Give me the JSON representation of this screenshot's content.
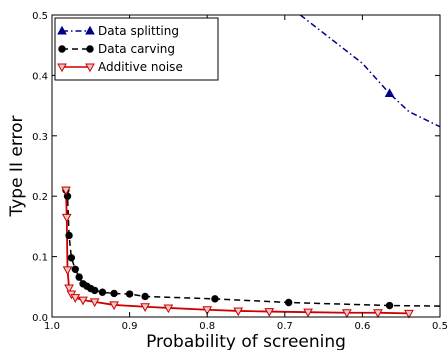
{
  "chart_data": {
    "type": "line",
    "title": "",
    "xlabel": "Probability of screening",
    "ylabel": "Type II error",
    "xlim": [
      1.0,
      0.5
    ],
    "ylim": [
      0.0,
      0.5
    ],
    "x_reversed": true,
    "xticks": [
      "1.0",
      "0.9",
      "0.8",
      "0.7",
      "0.6",
      "0.5"
    ],
    "yticks": [
      "0.0",
      "0.1",
      "0.2",
      "0.3",
      "0.4",
      "0.5"
    ],
    "grid": false,
    "legend_position": "top-left",
    "series": [
      {
        "name": "Data splitting",
        "color": "#00008B",
        "line_style": "dash-dot",
        "marker": "triangle-up",
        "x": [
          0.68,
          0.6,
          0.565,
          0.54,
          0.5
        ],
        "y": [
          0.5,
          0.42,
          0.37,
          0.34,
          0.315
        ],
        "marker_x": [
          0.565
        ],
        "marker_y": [
          0.37
        ]
      },
      {
        "name": "Data carving",
        "color": "#000000",
        "line_style": "dashed",
        "marker": "circle",
        "x": [
          0.982,
          0.98,
          0.978,
          0.975,
          0.97,
          0.965,
          0.96,
          0.955,
          0.95,
          0.945,
          0.935,
          0.92,
          0.9,
          0.88,
          0.79,
          0.695,
          0.565,
          0.5
        ],
        "y": [
          0.21,
          0.2,
          0.135,
          0.098,
          0.079,
          0.066,
          0.055,
          0.051,
          0.047,
          0.044,
          0.041,
          0.039,
          0.038,
          0.034,
          0.03,
          0.024,
          0.019,
          0.018
        ],
        "marker_x": [
          0.982,
          0.98,
          0.978,
          0.975,
          0.97,
          0.965,
          0.96,
          0.955,
          0.95,
          0.945,
          0.935,
          0.92,
          0.9,
          0.88,
          0.79,
          0.695,
          0.565
        ],
        "marker_y": [
          0.21,
          0.2,
          0.135,
          0.098,
          0.079,
          0.066,
          0.055,
          0.051,
          0.047,
          0.044,
          0.041,
          0.039,
          0.038,
          0.034,
          0.03,
          0.024,
          0.019
        ]
      },
      {
        "name": "Additive noise",
        "color": "#CC0000",
        "line_style": "solid",
        "marker": "triangle-down",
        "x": [
          0.982,
          0.981,
          0.98,
          0.978,
          0.975,
          0.97,
          0.96,
          0.945,
          0.92,
          0.88,
          0.85,
          0.8,
          0.76,
          0.72,
          0.67,
          0.62,
          0.58,
          0.54
        ],
        "y": [
          0.21,
          0.165,
          0.078,
          0.048,
          0.038,
          0.032,
          0.028,
          0.025,
          0.02,
          0.017,
          0.015,
          0.012,
          0.01,
          0.009,
          0.008,
          0.007,
          0.007,
          0.006
        ],
        "marker_x": [
          0.982,
          0.981,
          0.98,
          0.978,
          0.975,
          0.97,
          0.96,
          0.945,
          0.92,
          0.88,
          0.85,
          0.8,
          0.76,
          0.72,
          0.67,
          0.62,
          0.58,
          0.54
        ],
        "marker_y": [
          0.21,
          0.165,
          0.078,
          0.048,
          0.038,
          0.032,
          0.028,
          0.025,
          0.02,
          0.017,
          0.015,
          0.012,
          0.01,
          0.009,
          0.008,
          0.007,
          0.007,
          0.006
        ]
      }
    ]
  }
}
